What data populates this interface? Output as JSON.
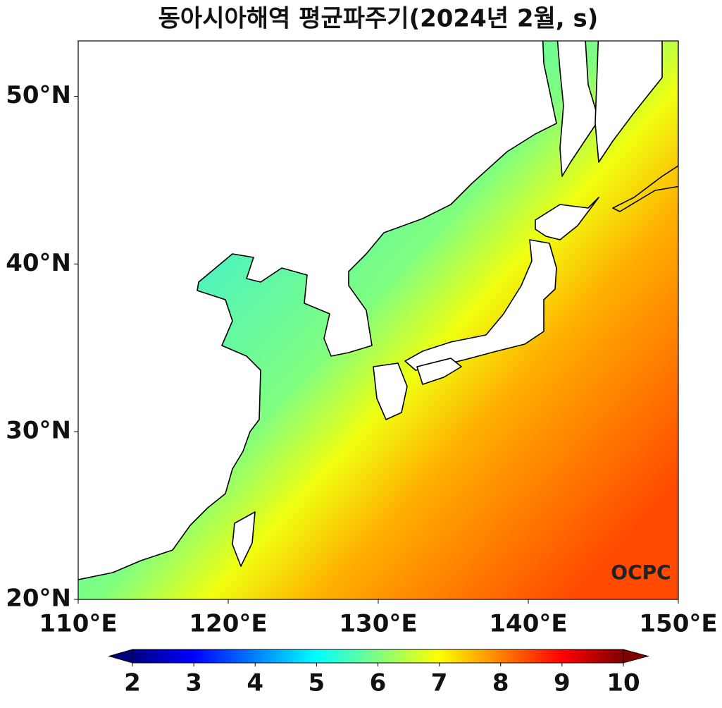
{
  "chart_data": {
    "type": "map",
    "title": "동아시아해역 평균파주기(2024년 2월, s)",
    "xlim": [
      110,
      150
    ],
    "ylim": [
      20,
      53.3
    ],
    "xticks": [
      {
        "value": 110,
        "label": "110°E"
      },
      {
        "value": 120,
        "label": "120°E"
      },
      {
        "value": 130,
        "label": "130°E"
      },
      {
        "value": 140,
        "label": "140°E"
      },
      {
        "value": 150,
        "label": "150°E"
      }
    ],
    "yticks": [
      {
        "value": 20,
        "label": "20°N"
      },
      {
        "value": 30,
        "label": "30°N"
      },
      {
        "value": 40,
        "label": "40°N"
      },
      {
        "value": 50,
        "label": "50°N"
      }
    ],
    "colorbar": {
      "lim": [
        2,
        10
      ],
      "ticks": [
        2,
        3,
        4,
        5,
        6,
        7,
        8,
        9,
        10
      ],
      "colormap": "jet",
      "extend": "both"
    },
    "logo": "OCPC"
  }
}
